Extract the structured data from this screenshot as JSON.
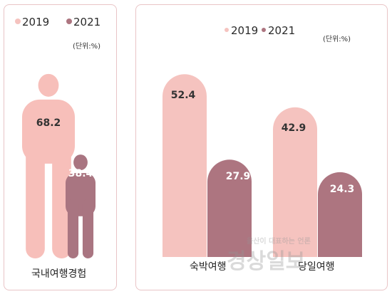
{
  "colors": {
    "c2019": "#f5c3bf",
    "c2021": "#ad7580",
    "body2019": "#f7bfba",
    "body2021": "#a97581",
    "border": "#e9c4c6"
  },
  "left": {
    "legend": [
      {
        "label": "2019",
        "color": "#f5c3bf"
      },
      {
        "label": "2021",
        "color": "#ad7580"
      }
    ],
    "unit": "(단위:%)",
    "category": "국내여행경험"
  },
  "right": {
    "legend": [
      {
        "label": "2019",
        "color": "#f5c3bf"
      },
      {
        "label": "2021",
        "color": "#ad7580"
      }
    ],
    "unit": "(단위:%)"
  },
  "watermark": {
    "small": "울산이 대표하는 언론",
    "big": "경상일보"
  },
  "chart_data": [
    {
      "type": "bar",
      "categories": [
        "국내여행경험"
      ],
      "series": [
        {
          "name": "2019",
          "values": [
            68.2
          ]
        },
        {
          "name": "2021",
          "values": [
            38.4
          ]
        }
      ]
    },
    {
      "type": "bar",
      "categories": [
        "숙박여행",
        "당일여행"
      ],
      "series": [
        {
          "name": "2019",
          "values": [
            52.4,
            42.9
          ]
        },
        {
          "name": "2021",
          "values": [
            27.9,
            24.3
          ]
        }
      ]
    }
  ]
}
